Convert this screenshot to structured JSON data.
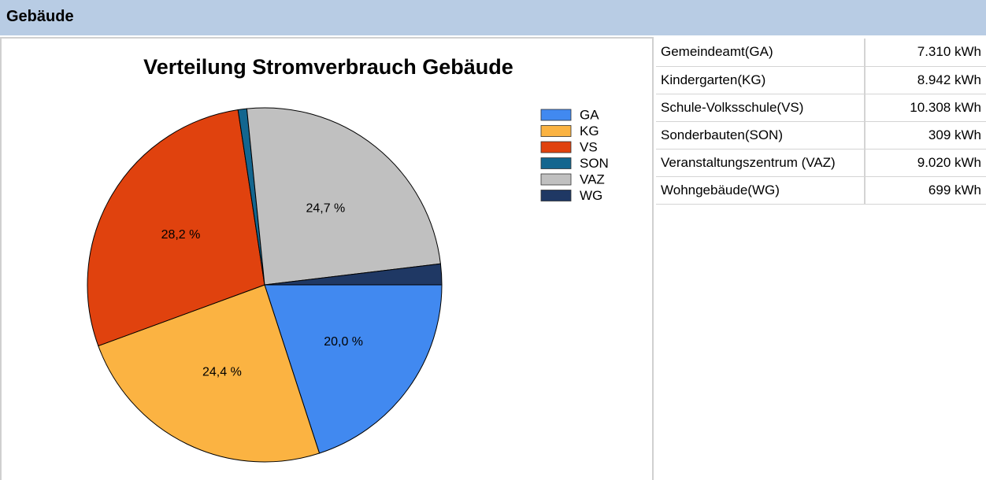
{
  "header": {
    "title": "Gebäude"
  },
  "chart_data": {
    "type": "pie",
    "title": "Verteilung Stromverbrauch Gebäude",
    "categories": [
      "GA",
      "KG",
      "VS",
      "SON",
      "VAZ",
      "WG"
    ],
    "values": [
      20.0,
      24.4,
      28.2,
      0.8,
      24.7,
      1.9
    ],
    "value_labels": [
      "20,0 %",
      "24,4 %",
      "28,2 %",
      null,
      "24,7 %",
      null
    ],
    "colors": [
      "#4189f0",
      "#fbb342",
      "#e0420e",
      "#13668f",
      "#c0c0c0",
      "#1f3864"
    ]
  },
  "table": {
    "rows": [
      [
        "Gemeindeamt(GA)",
        "7.310 kWh"
      ],
      [
        "Kindergarten(KG)",
        "8.942 kWh"
      ],
      [
        "Schule-Volksschule(VS)",
        "10.308 kWh"
      ],
      [
        "Sonderbauten(SON)",
        "309 kWh"
      ],
      [
        "Veranstaltungszentrum (VAZ)",
        "9.020 kWh"
      ],
      [
        "Wohngebäude(WG)",
        "699 kWh"
      ]
    ]
  }
}
